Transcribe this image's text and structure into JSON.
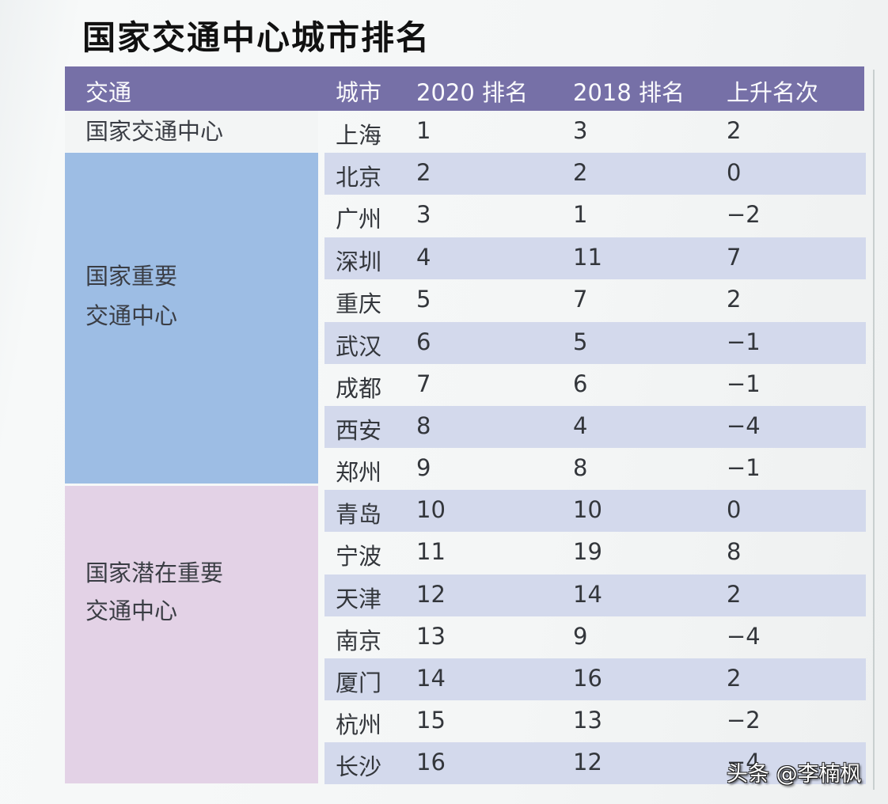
{
  "title": "国家交通中心城市排名",
  "table": {
    "headers": {
      "category": "交通",
      "city": "城市",
      "rank2020": "2020 排名",
      "rank2018": "2018 排名",
      "change": "上升名次"
    },
    "groups": [
      {
        "label_line1": "国家交通中心",
        "label_line2": "",
        "color": "#f3f5f5"
      },
      {
        "label_line1": "国家重要",
        "label_line2": "交通中心",
        "color": "#9dbde4"
      },
      {
        "label_line1": "国家潜在重要",
        "label_line2": "交通中心",
        "color": "#e3d2e6"
      }
    ],
    "rows": [
      {
        "city": "上海",
        "rank2020": "1",
        "rank2018": "3",
        "change": "2"
      },
      {
        "city": "北京",
        "rank2020": "2",
        "rank2018": "2",
        "change": "0"
      },
      {
        "city": "广州",
        "rank2020": "3",
        "rank2018": "1",
        "change": "−2"
      },
      {
        "city": "深圳",
        "rank2020": "4",
        "rank2018": "11",
        "change": "7"
      },
      {
        "city": "重庆",
        "rank2020": "5",
        "rank2018": "7",
        "change": "2"
      },
      {
        "city": "武汉",
        "rank2020": "6",
        "rank2018": "5",
        "change": "−1"
      },
      {
        "city": "成都",
        "rank2020": "7",
        "rank2018": "6",
        "change": "−1"
      },
      {
        "city": "西安",
        "rank2020": "8",
        "rank2018": "4",
        "change": "−4"
      },
      {
        "city": "郑州",
        "rank2020": "9",
        "rank2018": "8",
        "change": "−1"
      },
      {
        "city": "青岛",
        "rank2020": "10",
        "rank2018": "10",
        "change": "0"
      },
      {
        "city": "宁波",
        "rank2020": "11",
        "rank2018": "19",
        "change": "8"
      },
      {
        "city": "天津",
        "rank2020": "12",
        "rank2018": "14",
        "change": "2"
      },
      {
        "city": "南京",
        "rank2020": "13",
        "rank2018": "9",
        "change": "−4"
      },
      {
        "city": "厦门",
        "rank2020": "14",
        "rank2018": "16",
        "change": "2"
      },
      {
        "city": "杭州",
        "rank2020": "15",
        "rank2018": "13",
        "change": "−2"
      },
      {
        "city": "长沙",
        "rank2020": "16",
        "rank2018": "12",
        "change": "−4"
      }
    ]
  },
  "colors": {
    "header_bg": "#7670a7",
    "row_shade": "#d3d9ec",
    "important_group": "#9dbde4",
    "potential_group": "#e3d2e6"
  },
  "watermark": "头条 @李楠枫"
}
